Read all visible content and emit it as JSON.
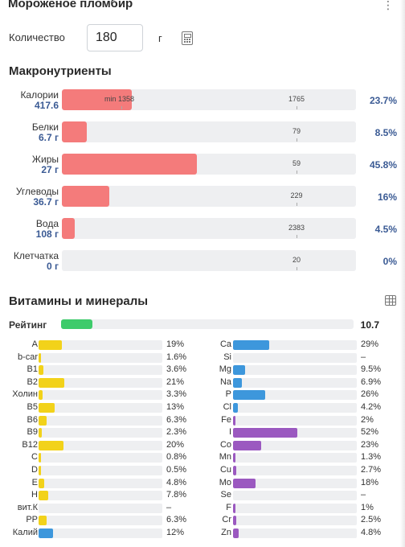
{
  "header": {
    "title": "Мороженое пломбир"
  },
  "quantity": {
    "label": "Количество",
    "value": "180",
    "unit": "г"
  },
  "macros": {
    "title": "Макронутриенты",
    "min_label": "min 1358",
    "items": [
      {
        "name": "Калории",
        "value": "417.6",
        "norm": "1765",
        "pct": "23.7%",
        "fill": 0.237
      },
      {
        "name": "Белки",
        "value": "6.7 г",
        "norm": "79",
        "pct": "8.5%",
        "fill": 0.085
      },
      {
        "name": "Жиры",
        "value": "27 г",
        "norm": "59",
        "pct": "45.8%",
        "fill": 0.458
      },
      {
        "name": "Углеводы",
        "value": "36.7 г",
        "norm": "229",
        "pct": "16%",
        "fill": 0.16
      },
      {
        "name": "Вода",
        "value": "108 г",
        "norm": "2383",
        "pct": "4.5%",
        "fill": 0.045
      },
      {
        "name": "Клетчатка",
        "value": "0 г",
        "norm": "20",
        "pct": "0%",
        "fill": 0.0
      }
    ]
  },
  "vitamins": {
    "title": "Витамины и минералы",
    "rating_label": "Рейтинг",
    "rating_value": "10.7",
    "rating_fill": 0.107,
    "colors": {
      "vitamin": "#f2d21a",
      "mineral_blue": "#3d97dc",
      "mineral_purple": "#9b59c0",
      "macro_fill": "#f47b7b",
      "rating": "#3ecb6b"
    },
    "left": [
      {
        "name": "A",
        "pct": "19%",
        "fill": 0.19,
        "color": "#f2d21a"
      },
      {
        "name": "b-car",
        "pct": "1.6%",
        "fill": 0.016,
        "color": "#f2d21a"
      },
      {
        "name": "B1",
        "pct": "3.6%",
        "fill": 0.036,
        "color": "#f2d21a"
      },
      {
        "name": "B2",
        "pct": "21%",
        "fill": 0.21,
        "color": "#f2d21a"
      },
      {
        "name": "Холин",
        "pct": "3.3%",
        "fill": 0.033,
        "color": "#f2d21a"
      },
      {
        "name": "B5",
        "pct": "13%",
        "fill": 0.13,
        "color": "#f2d21a"
      },
      {
        "name": "B6",
        "pct": "6.3%",
        "fill": 0.063,
        "color": "#f2d21a"
      },
      {
        "name": "B9",
        "pct": "2.3%",
        "fill": 0.023,
        "color": "#f2d21a"
      },
      {
        "name": "B12",
        "pct": "20%",
        "fill": 0.2,
        "color": "#f2d21a"
      },
      {
        "name": "C",
        "pct": "0.8%",
        "fill": 0.008,
        "color": "#f2d21a"
      },
      {
        "name": "D",
        "pct": "0.5%",
        "fill": 0.005,
        "color": "#f2d21a"
      },
      {
        "name": "E",
        "pct": "4.8%",
        "fill": 0.048,
        "color": "#f2d21a"
      },
      {
        "name": "H",
        "pct": "7.8%",
        "fill": 0.078,
        "color": "#f2d21a"
      },
      {
        "name": "вит.К",
        "pct": "–",
        "fill": 0,
        "color": "#f2d21a"
      },
      {
        "name": "PP",
        "pct": "6.3%",
        "fill": 0.063,
        "color": "#f2d21a"
      },
      {
        "name": "Калий",
        "pct": "12%",
        "fill": 0.12,
        "color": "#3d97dc"
      }
    ],
    "right": [
      {
        "name": "Ca",
        "pct": "29%",
        "fill": 0.29,
        "color": "#3d97dc"
      },
      {
        "name": "Si",
        "pct": "–",
        "fill": 0,
        "color": "#3d97dc"
      },
      {
        "name": "Mg",
        "pct": "9.5%",
        "fill": 0.095,
        "color": "#3d97dc"
      },
      {
        "name": "Na",
        "pct": "6.9%",
        "fill": 0.069,
        "color": "#3d97dc"
      },
      {
        "name": "P",
        "pct": "26%",
        "fill": 0.26,
        "color": "#3d97dc"
      },
      {
        "name": "Cl",
        "pct": "4.2%",
        "fill": 0.042,
        "color": "#3d97dc"
      },
      {
        "name": "Fe",
        "pct": "2%",
        "fill": 0.02,
        "color": "#9b59c0"
      },
      {
        "name": "I",
        "pct": "52%",
        "fill": 0.52,
        "color": "#9b59c0"
      },
      {
        "name": "Co",
        "pct": "23%",
        "fill": 0.23,
        "color": "#9b59c0"
      },
      {
        "name": "Mn",
        "pct": "1.3%",
        "fill": 0.013,
        "color": "#9b59c0"
      },
      {
        "name": "Cu",
        "pct": "2.7%",
        "fill": 0.027,
        "color": "#9b59c0"
      },
      {
        "name": "Mo",
        "pct": "18%",
        "fill": 0.18,
        "color": "#9b59c0"
      },
      {
        "name": "Se",
        "pct": "–",
        "fill": 0,
        "color": "#9b59c0"
      },
      {
        "name": "F",
        "pct": "1%",
        "fill": 0.01,
        "color": "#9b59c0"
      },
      {
        "name": "Cr",
        "pct": "2.5%",
        "fill": 0.025,
        "color": "#9b59c0"
      },
      {
        "name": "Zn",
        "pct": "4.8%",
        "fill": 0.048,
        "color": "#9b59c0"
      }
    ]
  }
}
